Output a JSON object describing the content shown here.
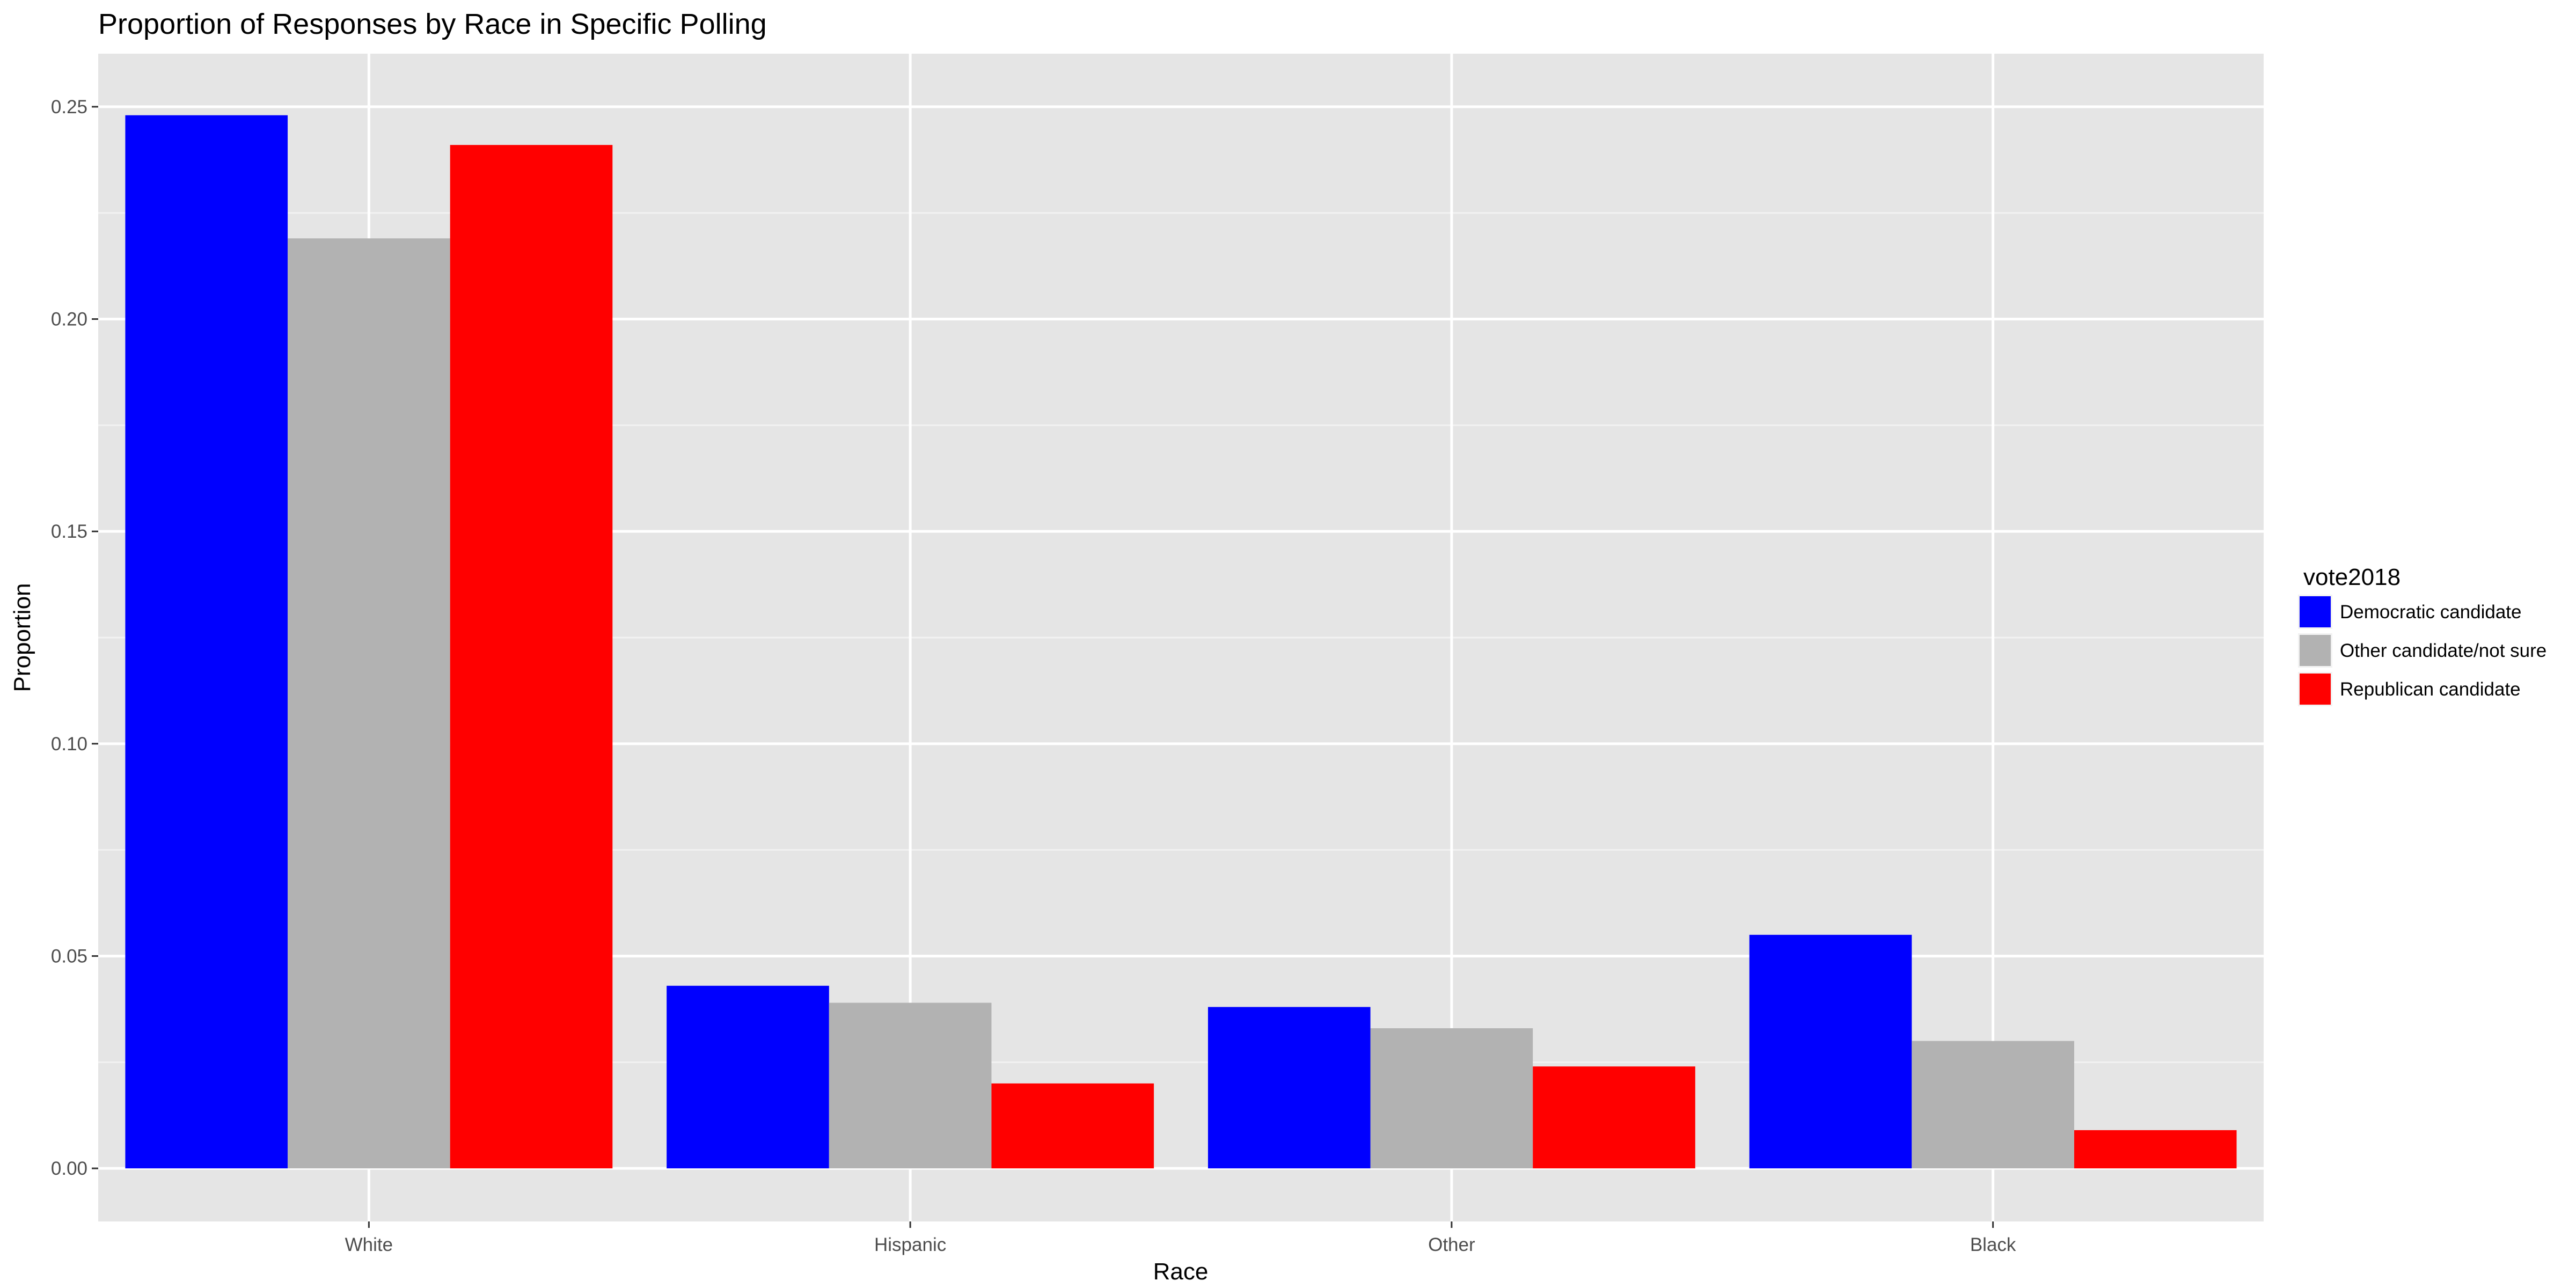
{
  "chart_data": {
    "type": "bar",
    "title": "Proportion of Responses by Race in Specific Polling",
    "xlabel": "Race",
    "ylabel": "Proportion",
    "categories": [
      "White",
      "Hispanic",
      "Other",
      "Black"
    ],
    "y_ticks": [
      "0.00",
      "0.05",
      "0.10",
      "0.15",
      "0.20",
      "0.25"
    ],
    "ylim": [
      -0.0125,
      0.2625
    ],
    "grid": true,
    "legend": {
      "title": "vote2018",
      "position": "right"
    },
    "series": [
      {
        "name": "Democratic candidate",
        "color": "#0000FF",
        "values": [
          0.248,
          0.043,
          0.038,
          0.055
        ]
      },
      {
        "name": "Other candidate/not sure",
        "color": "#B2B2B2",
        "values": [
          0.219,
          0.039,
          0.033,
          0.03
        ]
      },
      {
        "name": "Republican candidate",
        "color": "#FF0000",
        "values": [
          0.241,
          0.02,
          0.024,
          0.009
        ]
      }
    ]
  }
}
